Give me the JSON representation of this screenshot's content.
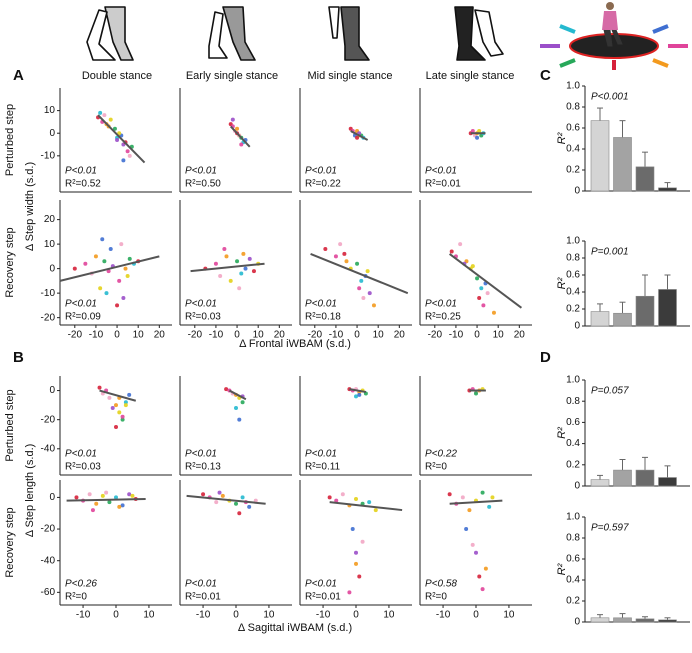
{
  "phases": [
    "Double stance",
    "Early single stance",
    "Mid single stance",
    "Late single stance"
  ],
  "palette": [
    "#d6213a",
    "#e0449a",
    "#f2a6c4",
    "#f39a1e",
    "#e3d21a",
    "#27a85a",
    "#25b9cf",
    "#3f6fd1",
    "#9b4fc9"
  ],
  "sections": [
    {
      "letter": "A",
      "bar_letter": "C",
      "ylabel": "Δ Step width (s.d.)",
      "xlabel": "Δ Frontal iWBAM (s.d.)"
    },
    {
      "letter": "B",
      "bar_letter": "D",
      "ylabel": "Δ Step length (s.d.)",
      "xlabel": "Δ Sagittal iWBAM (s.d.)"
    }
  ],
  "chart_data": [
    {
      "type": "scatter",
      "row_label": "Perturbed step",
      "xlim": [
        -27,
        26
      ],
      "ylim": [
        -26,
        20
      ],
      "yticks": [
        -10,
        0,
        10
      ],
      "panels": [
        {
          "x": [
            -9,
            -7,
            -6,
            -4,
            -3,
            -1,
            0,
            2,
            3,
            4,
            5,
            6,
            -5,
            1,
            7,
            -8,
            3,
            0
          ],
          "y": [
            7,
            5,
            8,
            3,
            6,
            2,
            -2,
            -1,
            -5,
            -4,
            -8,
            -10,
            4,
            0,
            -6,
            9,
            -12,
            -3
          ],
          "fit_x": [
            -9,
            13
          ],
          "fit_y": [
            8,
            -13
          ],
          "p_label": "P<0.01",
          "r2_label": "R²=0.52"
        },
        {
          "x": [
            -3,
            -2,
            -1,
            0,
            1,
            2,
            3,
            4,
            -2,
            0,
            2,
            1
          ],
          "y": [
            4,
            3,
            1,
            2,
            -1,
            -2,
            -4,
            -3,
            6,
            0,
            -5,
            -1
          ],
          "fit_x": [
            -3,
            6
          ],
          "fit_y": [
            3,
            -6
          ],
          "p_label": "P<0.01",
          "r2_label": "R²=0.50"
        },
        {
          "x": [
            -3,
            -2,
            -1,
            0,
            1,
            2,
            3,
            -1,
            1,
            0
          ],
          "y": [
            2,
            1,
            0,
            1,
            -1,
            -1,
            -2,
            -1,
            0,
            -2
          ],
          "fit_x": [
            -3,
            5
          ],
          "fit_y": [
            1,
            -3
          ],
          "p_label": "P<0.01",
          "r2_label": "R²=0.22"
        },
        {
          "x": [
            -3,
            -2,
            -1,
            0,
            1,
            2,
            3,
            0
          ],
          "y": [
            0,
            1,
            -1,
            0,
            1,
            -1,
            0,
            -2
          ],
          "fit_x": [
            -3,
            4
          ],
          "fit_y": [
            0,
            0
          ],
          "p_label": "P<0.01",
          "r2_label": "R²=0.01"
        }
      ]
    },
    {
      "type": "scatter",
      "row_label": "Recovery step",
      "xlim": [
        -27,
        26
      ],
      "ylim": [
        -23,
        28
      ],
      "yticks": [
        -20,
        -10,
        0,
        10,
        20
      ],
      "xticks": [
        -20,
        -10,
        0,
        10,
        20
      ],
      "panels": [
        {
          "x": [
            -20,
            -15,
            -12,
            -10,
            -8,
            -6,
            -5,
            -3,
            -2,
            0,
            1,
            2,
            4,
            5,
            6,
            8,
            -7,
            3,
            10,
            -4
          ],
          "y": [
            0,
            2,
            -2,
            5,
            -8,
            3,
            -10,
            8,
            1,
            -15,
            -5,
            10,
            0,
            -3,
            4,
            2,
            12,
            -12,
            3,
            -1
          ],
          "fit_x": [
            -27,
            20
          ],
          "fit_y": [
            -5,
            5
          ],
          "p_label": "P<0.01",
          "r2_label": "R²=0.09"
        },
        {
          "x": [
            -15,
            -10,
            -8,
            -5,
            -3,
            0,
            2,
            4,
            6,
            8,
            -6,
            1,
            3,
            10
          ],
          "y": [
            0,
            2,
            -3,
            5,
            -5,
            3,
            -2,
            0,
            4,
            -1,
            8,
            -8,
            6,
            2
          ],
          "fit_x": [
            -22,
            13
          ],
          "fit_y": [
            -1,
            2
          ],
          "p_label": "P<0.01",
          "r2_label": "R²=0.03"
        },
        {
          "x": [
            -15,
            -10,
            -8,
            -5,
            -3,
            0,
            2,
            4,
            6,
            -6,
            1,
            3,
            8,
            5
          ],
          "y": [
            8,
            5,
            10,
            3,
            0,
            2,
            -5,
            -3,
            -10,
            6,
            -8,
            -12,
            -15,
            -1
          ],
          "fit_x": [
            -22,
            24
          ],
          "fit_y": [
            6,
            -10
          ],
          "p_label": "P<0.01",
          "r2_label": "R²=0.18"
        },
        {
          "x": [
            -12,
            -10,
            -8,
            -5,
            -3,
            0,
            2,
            4,
            -6,
            1,
            3,
            5,
            8,
            -2
          ],
          "y": [
            7,
            5,
            10,
            3,
            0,
            -4,
            -8,
            -6,
            2,
            -12,
            -15,
            -10,
            -18,
            1
          ],
          "fit_x": [
            -13,
            21
          ],
          "fit_y": [
            6,
            -16
          ],
          "p_label": "P<0.01",
          "r2_label": "R²=0.25"
        }
      ]
    },
    {
      "type": "bar",
      "ylim": [
        0,
        1
      ],
      "yticks": [
        0,
        0.2,
        0.4,
        0.6,
        0.8,
        {
          "value": 1,
          "label": "1.0"
        }
      ],
      "ylabel": "R²",
      "p_label": "P<0.001",
      "values": [
        0.67,
        0.51,
        0.23,
        0.03
      ],
      "errors": [
        0.12,
        0.16,
        0.14,
        0.05
      ],
      "colors": [
        "#d4d4d4",
        "#a3a3a3",
        "#6b6b6b",
        "#3b3b3b"
      ]
    },
    {
      "type": "bar",
      "ylim": [
        0,
        1
      ],
      "yticks": [
        0,
        0.2,
        0.4,
        0.6,
        0.8,
        {
          "value": 1,
          "label": "1.0"
        }
      ],
      "ylabel": "R²",
      "p_label": "P=0.001",
      "values": [
        0.17,
        0.15,
        0.35,
        0.43
      ],
      "errors": [
        0.09,
        0.13,
        0.25,
        0.17
      ],
      "colors": [
        "#d4d4d4",
        "#a3a3a3",
        "#6b6b6b",
        "#3b3b3b"
      ]
    },
    {
      "type": "scatter",
      "row_label": "Perturbed step",
      "xlim": [
        -17,
        17
      ],
      "ylim": [
        -58,
        10
      ],
      "yticks": [
        -40,
        -20,
        0
      ],
      "panels": [
        {
          "x": [
            -5,
            -3,
            -2,
            0,
            1,
            2,
            3,
            4,
            -1,
            0,
            2,
            -4,
            1,
            3
          ],
          "y": [
            2,
            0,
            -5,
            -10,
            -15,
            -20,
            -8,
            -3,
            -12,
            -25,
            -18,
            -2,
            -5,
            -10
          ],
          "fit_x": [
            -5,
            6
          ],
          "fit_y": [
            0,
            -7
          ],
          "p_label": "P<0.01",
          "r2_label": "R²=0.03"
        },
        {
          "x": [
            -3,
            -2,
            -1,
            0,
            1,
            2,
            0,
            1,
            2
          ],
          "y": [
            1,
            0,
            -2,
            -3,
            -5,
            -8,
            -12,
            -20,
            -4
          ],
          "fit_x": [
            -2,
            3
          ],
          "fit_y": [
            0,
            -6
          ],
          "p_label": "P<0.01",
          "r2_label": "R²=0.13"
        },
        {
          "x": [
            -2,
            -1,
            0,
            1,
            2,
            3,
            0,
            1
          ],
          "y": [
            1,
            0,
            1,
            -1,
            0,
            -2,
            -4,
            -3
          ],
          "fit_x": [
            -2,
            3
          ],
          "fit_y": [
            1,
            -1
          ],
          "p_label": "P<0.01",
          "r2_label": "R²=0.11"
        },
        {
          "x": [
            -2,
            -1,
            0,
            1,
            2,
            0
          ],
          "y": [
            0,
            1,
            -1,
            0,
            1,
            -2
          ],
          "fit_x": [
            -2,
            3
          ],
          "fit_y": [
            0,
            0
          ],
          "p_label": "P<0.22",
          "r2_label": "R²=0"
        }
      ]
    },
    {
      "type": "scatter",
      "row_label": "Recovery step",
      "xlim": [
        -17,
        17
      ],
      "ylim": [
        -68,
        11
      ],
      "yticks": [
        -60,
        -40,
        -20,
        0
      ],
      "xticks": [
        -10,
        0,
        10
      ],
      "panels": [
        {
          "x": [
            -12,
            -10,
            -8,
            -6,
            -4,
            -2,
            0,
            2,
            4,
            6,
            -7,
            -3,
            1,
            5
          ],
          "y": [
            0,
            -2,
            2,
            -4,
            1,
            -3,
            0,
            -5,
            2,
            -1,
            -8,
            3,
            -6,
            1
          ],
          "fit_x": [
            -15,
            9
          ],
          "fit_y": [
            -2,
            -1
          ],
          "p_label": "P<0.26",
          "r2_label": "R²=0"
        },
        {
          "x": [
            -10,
            -8,
            -6,
            -4,
            -2,
            0,
            2,
            4,
            -5,
            1,
            3,
            6
          ],
          "y": [
            2,
            0,
            -3,
            1,
            -2,
            -4,
            0,
            -6,
            3,
            -10,
            -3,
            -2
          ],
          "fit_x": [
            -15,
            9
          ],
          "fit_y": [
            1,
            -4
          ],
          "p_label": "P<0.01",
          "r2_label": "R²=0.01"
        },
        {
          "x": [
            -8,
            -6,
            -4,
            -2,
            0,
            2,
            4,
            -1,
            0,
            1,
            -2,
            2,
            0,
            6
          ],
          "y": [
            0,
            -2,
            2,
            -5,
            -1,
            -4,
            -3,
            -20,
            -35,
            -50,
            -60,
            -28,
            -42,
            -8
          ],
          "fit_x": [
            -8,
            14
          ],
          "fit_y": [
            -3,
            -8
          ],
          "p_label": "P<0.01",
          "r2_label": "R²=0.01"
        },
        {
          "x": [
            -8,
            -6,
            -4,
            -2,
            0,
            2,
            4,
            -3,
            0,
            1,
            2,
            -1,
            3,
            5
          ],
          "y": [
            2,
            -4,
            0,
            -8,
            -2,
            3,
            -6,
            -20,
            -35,
            -50,
            -58,
            -30,
            -45,
            0
          ],
          "fit_x": [
            -8,
            8
          ],
          "fit_y": [
            -4,
            -2
          ],
          "p_label": "P<0.58",
          "r2_label": "R²=0"
        }
      ]
    },
    {
      "type": "bar",
      "ylim": [
        0,
        1
      ],
      "yticks": [
        0,
        0.2,
        0.4,
        0.6,
        0.8,
        {
          "value": 1,
          "label": "1.0"
        }
      ],
      "ylabel": "R²",
      "p_label": "P=0.057",
      "values": [
        0.06,
        0.15,
        0.15,
        0.08
      ],
      "errors": [
        0.04,
        0.1,
        0.12,
        0.11
      ],
      "colors": [
        "#d4d4d4",
        "#a3a3a3",
        "#6b6b6b",
        "#3b3b3b"
      ]
    },
    {
      "type": "bar",
      "ylim": [
        0,
        1
      ],
      "yticks": [
        0,
        0.2,
        0.4,
        0.6,
        0.8,
        {
          "value": 1,
          "label": "1.0"
        }
      ],
      "ylabel": "R²",
      "p_label": "P=0.597",
      "values": [
        0.04,
        0.04,
        0.03,
        0.02
      ],
      "errors": [
        0.03,
        0.04,
        0.02,
        0.02
      ],
      "colors": [
        "#d4d4d4",
        "#a3a3a3",
        "#6b6b6b",
        "#3b3b3b"
      ]
    }
  ]
}
